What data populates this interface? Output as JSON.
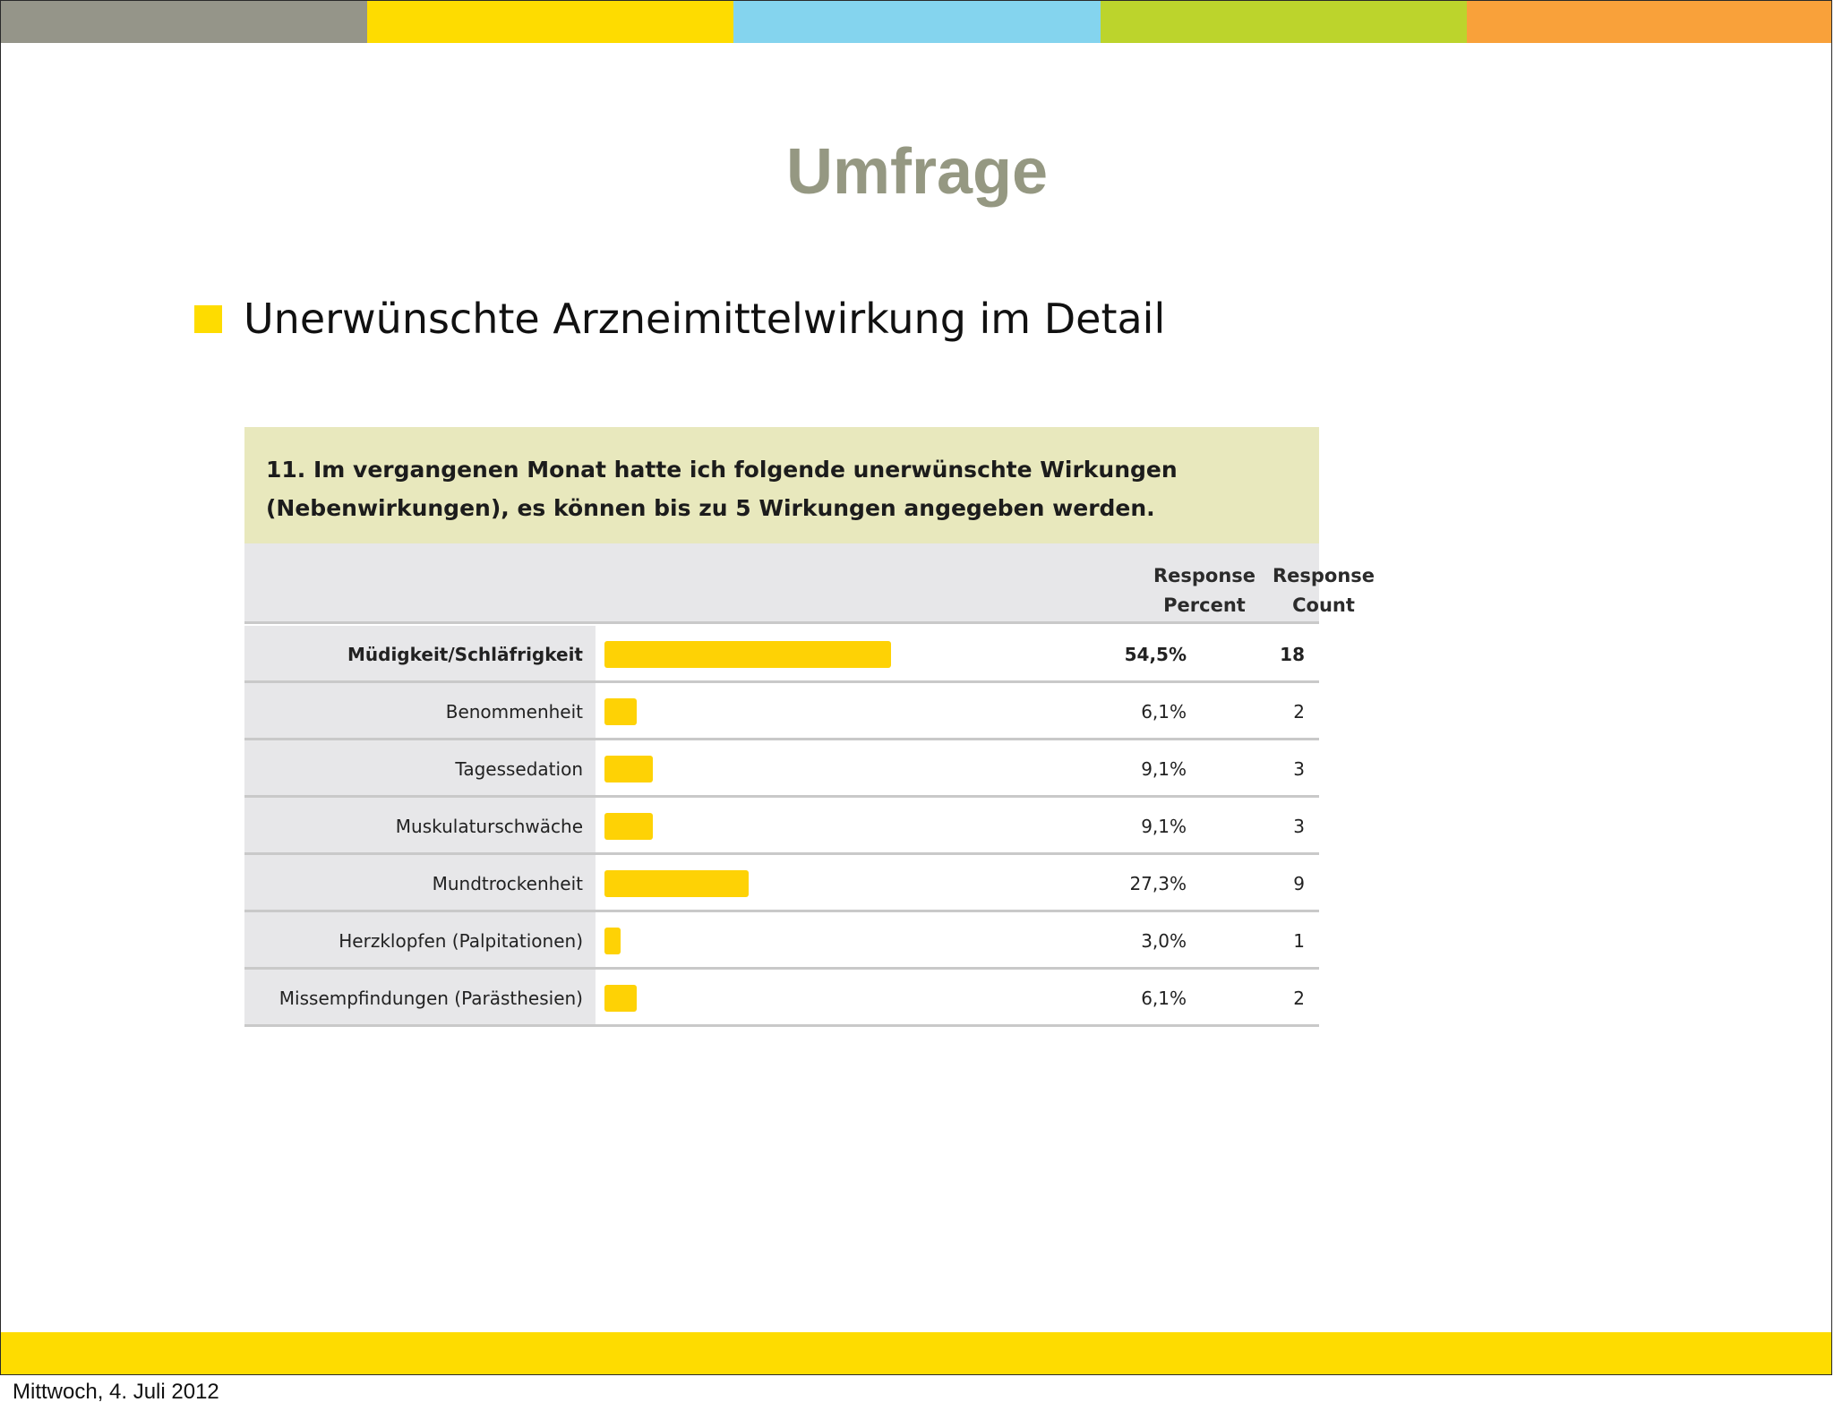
{
  "slide": {
    "title": "Umfrage",
    "bullet": "Unerwünschte Arzneimittelwirkung im Detail",
    "date": "Mittwoch, 4. Juli 2012"
  },
  "colors": {
    "title": "#959882",
    "bullet": "#fedc00",
    "bar": "#fed205",
    "footer_bar": "#fedc00",
    "question_bg": "#e8e8bd",
    "label_bg": "#e7e7e9",
    "top_stripes": [
      "#959589",
      "#fedc00",
      "#84d4ee",
      "#bcd42c",
      "#f9a13a"
    ]
  },
  "chart_data": {
    "type": "bar",
    "orientation": "horizontal",
    "question": [
      "11. Im vergangenen Monat hatte ich folgende unerwünschte Wirkungen",
      "(Nebenwirkungen), es können bis zu 5 Wirkungen angegeben werden."
    ],
    "columns": [
      {
        "label_line1": "Response",
        "label_line2": "Percent"
      },
      {
        "label_line1": "Response",
        "label_line2": "Count"
      }
    ],
    "categories": [
      "Müdigkeit/Schläfrigkeit",
      "Benommenheit",
      "Tagessedation",
      "Muskulaturschwäche",
      "Mundtrockenheit",
      "Herzklopfen (Palpitationen)",
      "Missempfindungen (Parästhesien)"
    ],
    "values": [
      54.5,
      6.1,
      9.1,
      9.1,
      27.3,
      3.0,
      6.1
    ],
    "percent_labels": [
      "54,5%",
      "6,1%",
      "9,1%",
      "9,1%",
      "27,3%",
      "3,0%",
      "6,1%"
    ],
    "counts": [
      "18",
      "2",
      "3",
      "3",
      "9",
      "1",
      "2"
    ],
    "xlim": [
      0,
      100
    ],
    "highlighted_row": 0
  }
}
